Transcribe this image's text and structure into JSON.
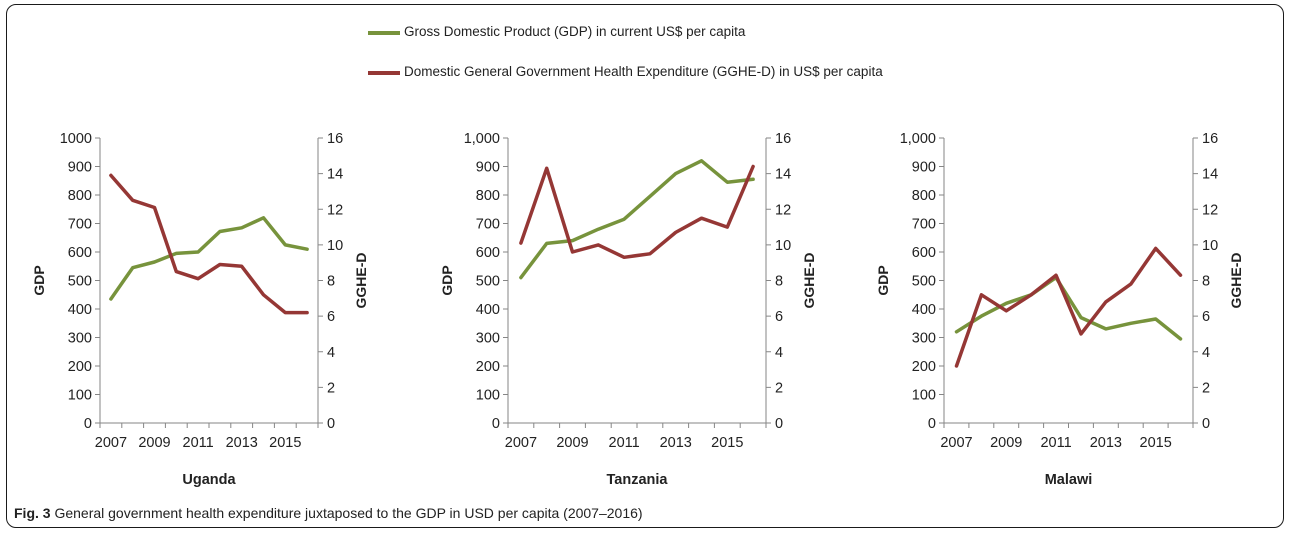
{
  "legend": [
    {
      "label": "Gross Domestic Product (GDP) in current US$ per capita",
      "color": "#77933c"
    },
    {
      "label": "Domestic General Government Health Expenditure (GGHE-D) in US$ per capita",
      "color": "#953735"
    }
  ],
  "caption": {
    "label": "Fig. 3",
    "text": "General government health expenditure juxtaposed to the GDP in USD per capita (2007–2016)"
  },
  "chart_data": [
    {
      "type": "line",
      "title": "Uganda",
      "xlabel": "",
      "ylabel": "GDP",
      "y2label": "GGHE-D",
      "x": [
        2007,
        2008,
        2009,
        2010,
        2011,
        2012,
        2013,
        2014,
        2015,
        2016
      ],
      "x_tick_labels": [
        "2007",
        "2009",
        "2011",
        "2013",
        "2015"
      ],
      "ylim": [
        0,
        1000
      ],
      "y_ticks": [
        "0",
        "100",
        "200",
        "300",
        "400",
        "500",
        "600",
        "700",
        "800",
        "900",
        "1000"
      ],
      "y2lim": [
        0,
        16
      ],
      "y2_ticks": [
        "0",
        "2",
        "4",
        "6",
        "8",
        "10",
        "12",
        "14",
        "16"
      ],
      "grid": false,
      "series": [
        {
          "axis": "left",
          "color": "#77933c",
          "values": [
            435,
            545,
            565,
            595,
            600,
            672,
            685,
            720,
            625,
            610
          ]
        },
        {
          "axis": "right",
          "color": "#953735",
          "values": [
            13.9,
            12.5,
            12.1,
            8.5,
            8.1,
            8.9,
            8.8,
            7.2,
            6.2,
            6.2
          ]
        }
      ]
    },
    {
      "type": "line",
      "title": "Tanzania",
      "xlabel": "",
      "ylabel": "GDP",
      "y2label": "GGHE-D",
      "x": [
        2007,
        2008,
        2009,
        2010,
        2011,
        2012,
        2013,
        2014,
        2015,
        2016
      ],
      "x_tick_labels": [
        "2007",
        "2009",
        "2011",
        "2013",
        "2015"
      ],
      "ylim": [
        0,
        1000
      ],
      "y_ticks": [
        "0",
        "100",
        "200",
        "300",
        "400",
        "500",
        "600",
        "700",
        "800",
        "900",
        "1,000"
      ],
      "y2lim": [
        0,
        16
      ],
      "y2_ticks": [
        "0",
        "2",
        "4",
        "6",
        "8",
        "10",
        "12",
        "14",
        "16"
      ],
      "grid": false,
      "series": [
        {
          "axis": "left",
          "color": "#77933c",
          "values": [
            510,
            630,
            640,
            680,
            715,
            795,
            875,
            920,
            845,
            855
          ]
        },
        {
          "axis": "right",
          "color": "#953735",
          "values": [
            10.1,
            14.3,
            9.6,
            10.0,
            9.3,
            9.5,
            10.7,
            11.5,
            11.0,
            14.4
          ]
        }
      ]
    },
    {
      "type": "line",
      "title": "Malawi",
      "xlabel": "",
      "ylabel": "GDP",
      "y2label": "GGHE-D",
      "x": [
        2007,
        2008,
        2009,
        2010,
        2011,
        2012,
        2013,
        2014,
        2015,
        2016
      ],
      "x_tick_labels": [
        "2007",
        "2009",
        "2011",
        "2013",
        "2015"
      ],
      "ylim": [
        0,
        1000
      ],
      "y_ticks": [
        "0",
        "100",
        "200",
        "300",
        "400",
        "500",
        "600",
        "700",
        "800",
        "900",
        "1,000"
      ],
      "y2lim": [
        0,
        16
      ],
      "y2_ticks": [
        "0",
        "2",
        "4",
        "6",
        "8",
        "10",
        "12",
        "14",
        "16"
      ],
      "grid": false,
      "series": [
        {
          "axis": "left",
          "color": "#77933c",
          "values": [
            320,
            375,
            420,
            450,
            510,
            370,
            330,
            350,
            365,
            295
          ]
        },
        {
          "axis": "right",
          "color": "#953735",
          "values": [
            3.2,
            7.2,
            6.3,
            7.2,
            8.3,
            5.0,
            6.8,
            7.8,
            9.8,
            8.3
          ]
        }
      ]
    }
  ]
}
